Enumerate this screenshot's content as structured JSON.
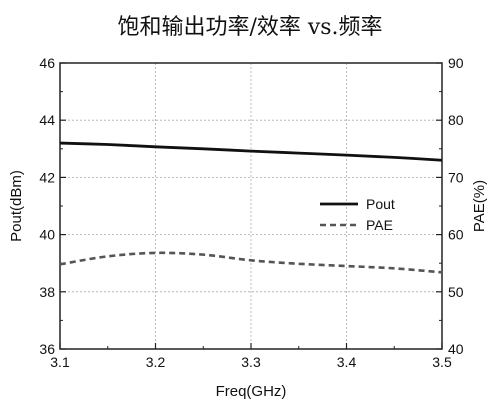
{
  "chart_data": {
    "type": "line",
    "title": "饱和输出功率/效率 vs.频率",
    "xlabel": "Freq(GHz)",
    "ylabel_left": "Pout(dBm)",
    "ylabel_right": "PAE(%)",
    "xlim": [
      3.1,
      3.5
    ],
    "ylim_left": [
      36,
      46
    ],
    "ylim_right": [
      40,
      90
    ],
    "x_ticks": [
      "3.1",
      "3.2",
      "3.3",
      "3.4",
      "3.5"
    ],
    "y_left_ticks": [
      "36",
      "38",
      "40",
      "42",
      "44",
      "46"
    ],
    "y_right_ticks": [
      "40",
      "50",
      "60",
      "70",
      "80",
      "90"
    ],
    "grid": true,
    "legend_position": "center-right",
    "series": [
      {
        "name": "Pout",
        "axis": "left",
        "style": "solid",
        "color": "#111111",
        "x": [
          3.1,
          3.15,
          3.2,
          3.25,
          3.3,
          3.35,
          3.4,
          3.45,
          3.5
        ],
        "y": [
          43.2,
          43.15,
          43.07,
          43.0,
          42.92,
          42.85,
          42.78,
          42.7,
          42.6
        ]
      },
      {
        "name": "PAE",
        "axis": "right",
        "style": "dashed",
        "color": "#555555",
        "x": [
          3.1,
          3.15,
          3.2,
          3.25,
          3.3,
          3.35,
          3.4,
          3.45,
          3.5
        ],
        "y": [
          54.8,
          56.2,
          56.8,
          56.5,
          55.5,
          54.9,
          54.5,
          54.1,
          53.4
        ]
      }
    ]
  }
}
